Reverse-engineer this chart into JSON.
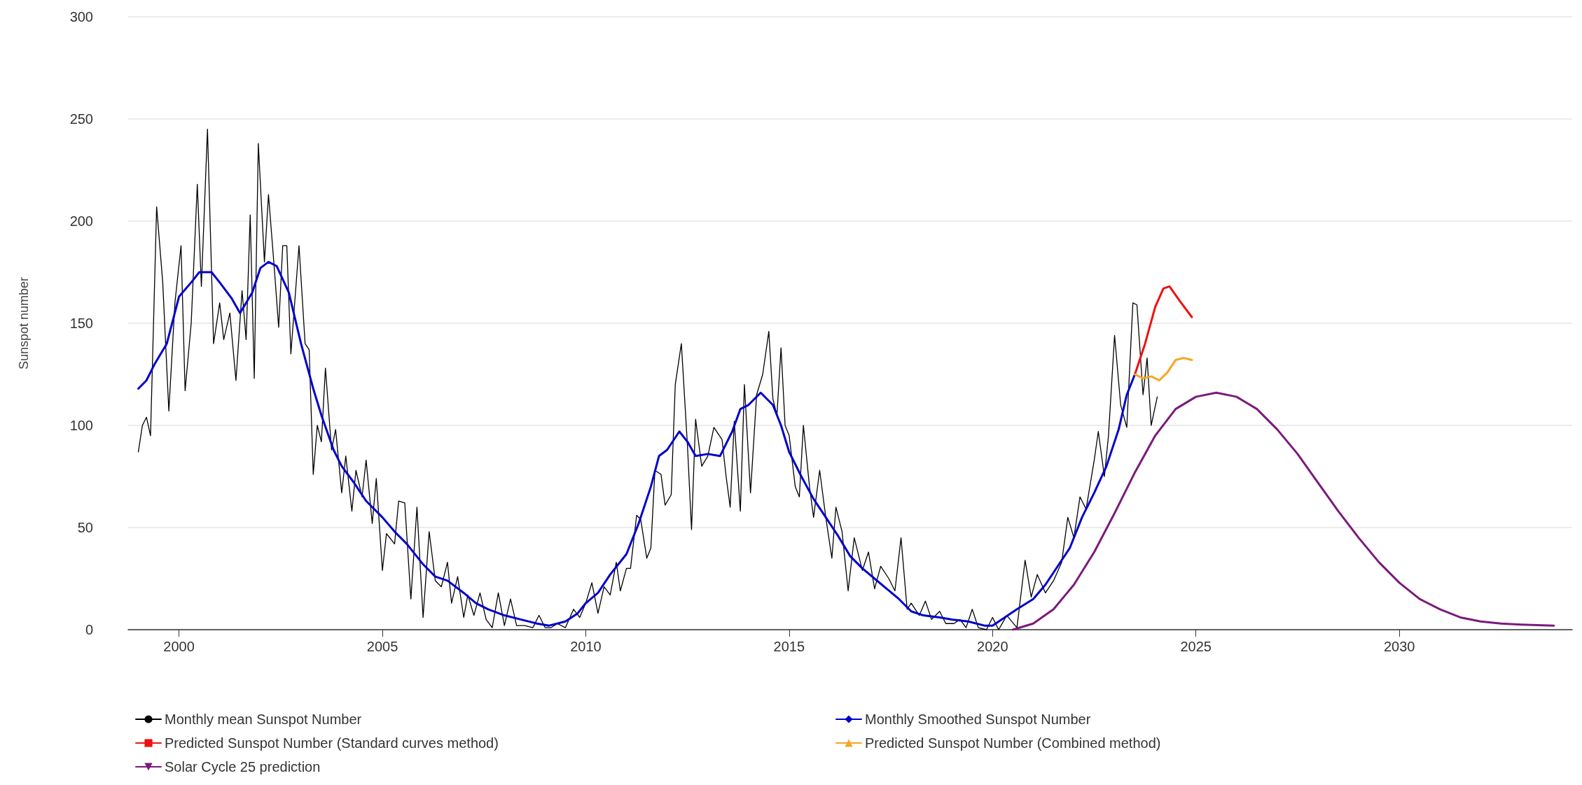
{
  "chart_data": {
    "type": "line",
    "ylabel": "Sunspot number",
    "xlim": [
      1998.75,
      2034.25
    ],
    "xticks": [
      2000,
      2005,
      2010,
      2015,
      2020,
      2025,
      2030
    ],
    "ylim": [
      0,
      300
    ],
    "yticks": [
      0,
      50,
      100,
      150,
      200,
      250,
      300
    ],
    "grid": "y",
    "legend": "bottom",
    "marker": "none",
    "line_style": "solid",
    "series": [
      {
        "name": "Monthly mean Sunspot Number",
        "color": "#000000",
        "x": [
          1999.0,
          1999.1,
          1999.2,
          1999.3,
          1999.45,
          1999.6,
          1999.75,
          1999.9,
          2000.05,
          2000.15,
          2000.3,
          2000.45,
          2000.55,
          2000.7,
          2000.85,
          2001.0,
          2001.1,
          2001.25,
          2001.4,
          2001.55,
          2001.65,
          2001.75,
          2001.85,
          2001.95,
          2002.1,
          2002.2,
          2002.35,
          2002.45,
          2002.55,
          2002.65,
          2002.75,
          2002.95,
          2003.1,
          2003.2,
          2003.3,
          2003.4,
          2003.5,
          2003.6,
          2003.75,
          2003.85,
          2004.0,
          2004.1,
          2004.25,
          2004.35,
          2004.5,
          2004.6,
          2004.75,
          2004.85,
          2005.0,
          2005.1,
          2005.3,
          2005.4,
          2005.55,
          2005.7,
          2005.85,
          2006.0,
          2006.15,
          2006.3,
          2006.45,
          2006.6,
          2006.7,
          2006.85,
          2007.0,
          2007.1,
          2007.25,
          2007.4,
          2007.55,
          2007.7,
          2007.85,
          2008.0,
          2008.15,
          2008.3,
          2008.5,
          2008.7,
          2008.85,
          2009.0,
          2009.15,
          2009.3,
          2009.5,
          2009.7,
          2009.85,
          2010.0,
          2010.15,
          2010.3,
          2010.45,
          2010.6,
          2010.75,
          2010.85,
          2011.0,
          2011.1,
          2011.25,
          2011.35,
          2011.5,
          2011.6,
          2011.7,
          2011.85,
          2011.95,
          2012.1,
          2012.2,
          2012.35,
          2012.5,
          2012.6,
          2012.7,
          2012.85,
          2013.0,
          2013.15,
          2013.35,
          2013.45,
          2013.55,
          2013.65,
          2013.8,
          2013.9,
          2014.05,
          2014.2,
          2014.35,
          2014.5,
          2014.6,
          2014.7,
          2014.8,
          2014.9,
          2015.0,
          2015.15,
          2015.25,
          2015.35,
          2015.5,
          2015.6,
          2015.75,
          2015.9,
          2016.05,
          2016.15,
          2016.3,
          2016.45,
          2016.6,
          2016.8,
          2016.95,
          2017.1,
          2017.25,
          2017.45,
          2017.6,
          2017.75,
          2017.9,
          2018.0,
          2018.2,
          2018.35,
          2018.5,
          2018.7,
          2018.85,
          2019.05,
          2019.2,
          2019.35,
          2019.5,
          2019.65,
          2019.85,
          2020.0,
          2020.15,
          2020.35,
          2020.6,
          2020.8,
          2020.95,
          2021.1,
          2021.3,
          2021.5,
          2021.7,
          2021.85,
          2022.0,
          2022.15,
          2022.3,
          2022.5,
          2022.6,
          2022.75,
          2022.85,
          2023.0,
          2023.15,
          2023.3,
          2023.45,
          2023.55,
          2023.7,
          2023.8,
          2023.9,
          2024.05
        ],
        "values": [
          87,
          100,
          104,
          95,
          207,
          170,
          107,
          160,
          188,
          117,
          150,
          218,
          168,
          245,
          140,
          160,
          142,
          155,
          122,
          166,
          142,
          203,
          123,
          238,
          180,
          213,
          175,
          148,
          188,
          188,
          135,
          188,
          140,
          137,
          76,
          100,
          92,
          128,
          88,
          98,
          67,
          85,
          58,
          78,
          65,
          83,
          52,
          74,
          29,
          47,
          42,
          63,
          62,
          15,
          60,
          6,
          48,
          24,
          21,
          33,
          13,
          26,
          6,
          17,
          7,
          18,
          5,
          1,
          18,
          2,
          15,
          2,
          2,
          1,
          7,
          1,
          1,
          3,
          1,
          10,
          6,
          13,
          23,
          8,
          21,
          17,
          33,
          19,
          30,
          30,
          56,
          54,
          35,
          40,
          78,
          76,
          61,
          66,
          120,
          140,
          90,
          49,
          103,
          80,
          85,
          99,
          93,
          75,
          60,
          102,
          58,
          120,
          67,
          115,
          125,
          146,
          113,
          105,
          138,
          100,
          95,
          70,
          65,
          100,
          70,
          55,
          78,
          55,
          35,
          60,
          48,
          19,
          45,
          29,
          38,
          20,
          31,
          25,
          19,
          45,
          10,
          13,
          7,
          14,
          5,
          9,
          3,
          3,
          5,
          1,
          10,
          1,
          0,
          6,
          0,
          7,
          1,
          34,
          16,
          27,
          18,
          24,
          33,
          55,
          45,
          65,
          59,
          83,
          97,
          75,
          95,
          144,
          110,
          99,
          160,
          159,
          115,
          133,
          100,
          114
        ]
      },
      {
        "name": "Monthly Smoothed Sunspot Number",
        "color": "#0000cc",
        "x": [
          1999.0,
          1999.2,
          1999.4,
          1999.7,
          2000.0,
          2000.3,
          2000.5,
          2000.8,
          2001.0,
          2001.3,
          2001.5,
          2001.8,
          2002.0,
          2002.2,
          2002.4,
          2002.7,
          2003.0,
          2003.3,
          2003.5,
          2003.8,
          2004.0,
          2004.3,
          2004.6,
          2005.0,
          2005.3,
          2005.6,
          2006.0,
          2006.3,
          2006.6,
          2007.0,
          2007.3,
          2007.6,
          2008.0,
          2008.4,
          2008.8,
          2009.1,
          2009.5,
          2009.8,
          2010.0,
          2010.3,
          2010.6,
          2011.0,
          2011.3,
          2011.6,
          2011.8,
          2012.0,
          2012.3,
          2012.5,
          2012.7,
          2013.0,
          2013.3,
          2013.6,
          2013.8,
          2014.0,
          2014.3,
          2014.6,
          2014.8,
          2015.0,
          2015.3,
          2015.6,
          2015.9,
          2016.2,
          2016.5,
          2016.8,
          2017.1,
          2017.4,
          2017.7,
          2018.0,
          2018.3,
          2018.7,
          2019.0,
          2019.4,
          2019.8,
          2020.0,
          2020.3,
          2020.6,
          2021.0,
          2021.3,
          2021.6,
          2021.9,
          2022.2,
          2022.5,
          2022.8,
          2023.1,
          2023.3,
          2023.5
        ],
        "values": [
          118,
          122,
          130,
          140,
          163,
          170,
          175,
          175,
          170,
          162,
          155,
          165,
          177,
          180,
          178,
          165,
          140,
          118,
          105,
          88,
          80,
          72,
          63,
          55,
          48,
          42,
          32,
          26,
          24,
          18,
          13,
          10,
          7,
          5,
          3,
          2,
          4,
          8,
          13,
          18,
          27,
          37,
          52,
          70,
          85,
          88,
          97,
          92,
          85,
          86,
          85,
          97,
          108,
          110,
          116,
          110,
          100,
          87,
          75,
          64,
          55,
          46,
          36,
          30,
          25,
          20,
          15,
          9,
          7,
          6,
          5,
          4,
          2,
          2,
          6,
          10,
          15,
          22,
          31,
          40,
          55,
          67,
          80,
          98,
          115,
          125
        ]
      },
      {
        "name": "Predicted Sunspot Number (Standard curves method)",
        "color": "#ee1111",
        "x": [
          2023.5,
          2023.75,
          2024.0,
          2024.2,
          2024.35,
          2024.6,
          2024.9
        ],
        "values": [
          125,
          140,
          158,
          167,
          168,
          161,
          153
        ]
      },
      {
        "name": "Predicted Sunspot Number (Combined method)",
        "color": "#f5a623",
        "x": [
          2023.5,
          2023.7,
          2023.9,
          2024.1,
          2024.3,
          2024.5,
          2024.7,
          2024.9
        ],
        "values": [
          125,
          123,
          124,
          122,
          126,
          132,
          133,
          132
        ]
      },
      {
        "name": "Solar Cycle 25 prediction",
        "color": "#7b1a7b",
        "x": [
          2020.5,
          2021,
          2021.5,
          2022,
          2022.5,
          2023,
          2023.5,
          2024,
          2024.5,
          2025,
          2025.5,
          2026,
          2026.5,
          2027,
          2027.5,
          2028,
          2028.5,
          2029,
          2029.5,
          2030,
          2030.5,
          2031,
          2031.5,
          2032,
          2032.5,
          2033,
          2033.8
        ],
        "values": [
          0,
          3,
          10,
          22,
          38,
          57,
          77,
          95,
          108,
          114,
          116,
          114,
          108,
          98,
          86,
          72,
          58,
          45,
          33,
          23,
          15,
          10,
          6,
          4,
          3,
          2.5,
          2
        ]
      }
    ]
  }
}
